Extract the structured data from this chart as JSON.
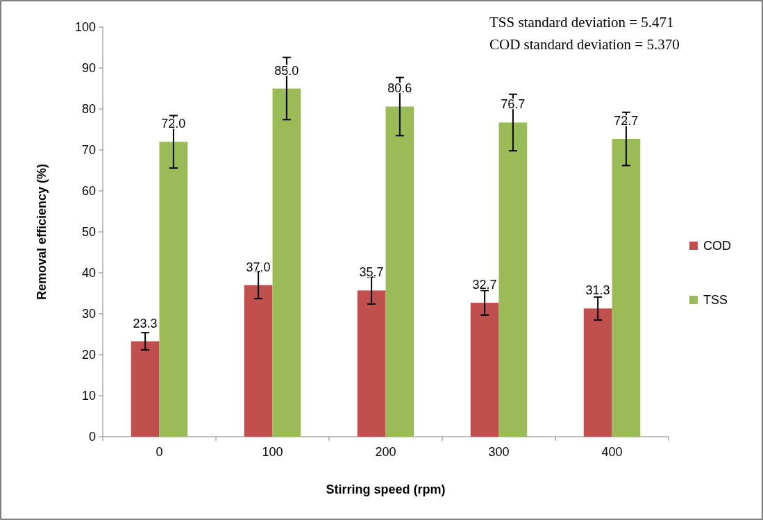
{
  "chart_data": {
    "type": "bar",
    "xlabel": "Stirring speed (rpm)",
    "ylabel": "Removal efficiency (%)",
    "categories": [
      "0",
      "100",
      "200",
      "300",
      "400"
    ],
    "series": [
      {
        "name": "COD",
        "color": "#c0504d",
        "values": [
          23.3,
          37.0,
          35.7,
          32.7,
          31.3
        ],
        "errors": [
          2.1,
          3.3,
          3.3,
          3.0,
          2.8
        ],
        "value_labels": [
          "23.3",
          "37.0",
          "35.7",
          "32.7",
          "31.3"
        ]
      },
      {
        "name": "TSS",
        "color": "#9bbb59",
        "values": [
          72.0,
          85.0,
          80.6,
          76.7,
          72.7
        ],
        "errors": [
          6.4,
          7.6,
          7.1,
          6.9,
          6.5
        ],
        "value_labels": [
          "72.0",
          "85.0",
          "80.6",
          "76.7",
          "72.7"
        ]
      }
    ],
    "ylim": [
      0,
      100
    ],
    "yticks": [
      0,
      10,
      20,
      30,
      40,
      50,
      60,
      70,
      80,
      90,
      100
    ],
    "legend": "right",
    "grid": false,
    "annotations": [
      "TSS standard deviation = 5.471",
      "COD standard deviation = 5.370"
    ]
  }
}
